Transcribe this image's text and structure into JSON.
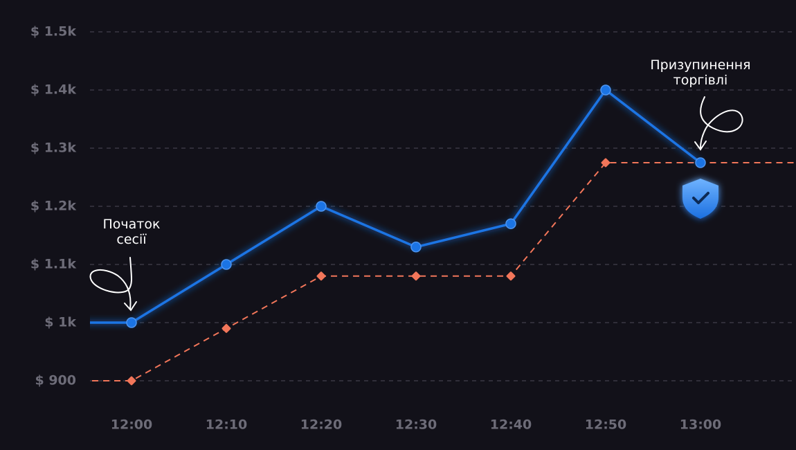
{
  "chart_data": {
    "type": "line",
    "categories": [
      null,
      "12:00",
      "12:10",
      "12:20",
      "12:30",
      "12:40",
      "12:50",
      "13:00",
      null
    ],
    "series": [
      {
        "color": "#1b74e4",
        "values": [
          1000,
          1000,
          1100,
          1200,
          1130,
          1170,
          1400,
          1275,
          null
        ]
      },
      {
        "color": "#f2765a",
        "dashed": true,
        "values": [
          900,
          900,
          990,
          1080,
          1080,
          1080,
          1275,
          1275,
          1275
        ]
      }
    ],
    "ylim": [
      900,
      1500
    ],
    "yticks": [
      {
        "value": 900,
        "label": "$ 900"
      },
      {
        "value": 1000,
        "label": "$ 1k"
      },
      {
        "value": 1100,
        "label": "$ 1.1k"
      },
      {
        "value": 1200,
        "label": "$ 1.2k"
      },
      {
        "value": 1300,
        "label": "$ 1.3k"
      },
      {
        "value": 1400,
        "label": "$ 1.4k"
      },
      {
        "value": 1500,
        "label": "$ 1.5k"
      }
    ],
    "grid": true,
    "annotations": [
      {
        "lines": [
          "Початок",
          "сесії"
        ],
        "category": 1
      },
      {
        "lines": [
          "Призупинення",
          "торгівлі"
        ],
        "category": 7
      }
    ]
  }
}
